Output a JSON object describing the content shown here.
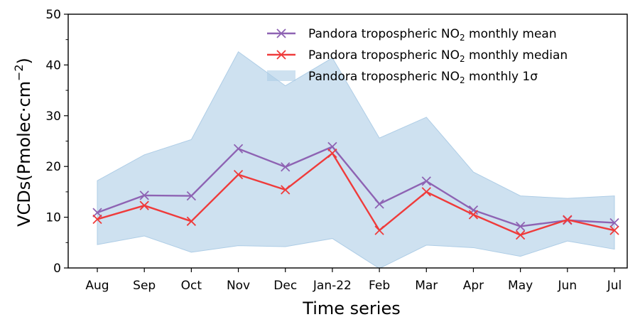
{
  "chart_data": {
    "type": "line",
    "categories": [
      "Aug",
      "Sep",
      "Oct",
      "Nov",
      "Dec",
      "Jan-22",
      "Feb",
      "Mar",
      "Apr",
      "May",
      "Jun",
      "Jul"
    ],
    "series": [
      {
        "name": "mean",
        "values": [
          10.9,
          14.3,
          14.2,
          23.5,
          19.9,
          23.9,
          12.6,
          17.1,
          11.4,
          8.2,
          9.4,
          8.9
        ],
        "color": "#8e63b3",
        "marker": "x"
      },
      {
        "name": "median",
        "values": [
          9.6,
          12.3,
          9.2,
          18.4,
          15.4,
          22.6,
          7.4,
          15.0,
          10.5,
          6.5,
          9.5,
          7.4
        ],
        "color": "#ef3b3b",
        "marker": "x"
      }
    ],
    "band": {
      "name": "1σ",
      "upper": [
        17.2,
        22.3,
        25.3,
        42.6,
        35.9,
        41.4,
        25.6,
        29.7,
        18.9,
        14.2,
        13.7,
        14.2
      ],
      "lower": [
        4.6,
        6.3,
        3.1,
        4.4,
        4.2,
        5.8,
        -0.1,
        4.5,
        4.0,
        2.3,
        5.3,
        3.7
      ],
      "color": "#aecde6",
      "opacity": 0.6
    },
    "ylim": [
      0,
      50
    ],
    "yticks": [
      0,
      10,
      20,
      30,
      40,
      50
    ],
    "xlabel": "Time series",
    "ylabel_text": "VCDs(Pmolec·cm",
    "ylabel_sup": "−2",
    "ylabel_close": ")",
    "legend": [
      {
        "text": "Pandora tropospheric NO",
        "sub": "2",
        "suffix": " monthly mean",
        "kind": "line",
        "color": "#8e63b3"
      },
      {
        "text": "Pandora tropospheric NO",
        "sub": "2",
        "suffix": " monthly median",
        "kind": "line",
        "color": "#ef3b3b"
      },
      {
        "text": "Pandora tropospheric NO",
        "sub": "2",
        "suffix": " monthly 1σ",
        "kind": "patch",
        "color": "#aecde6"
      }
    ],
    "legend_position": "top-right",
    "grid": false
  }
}
